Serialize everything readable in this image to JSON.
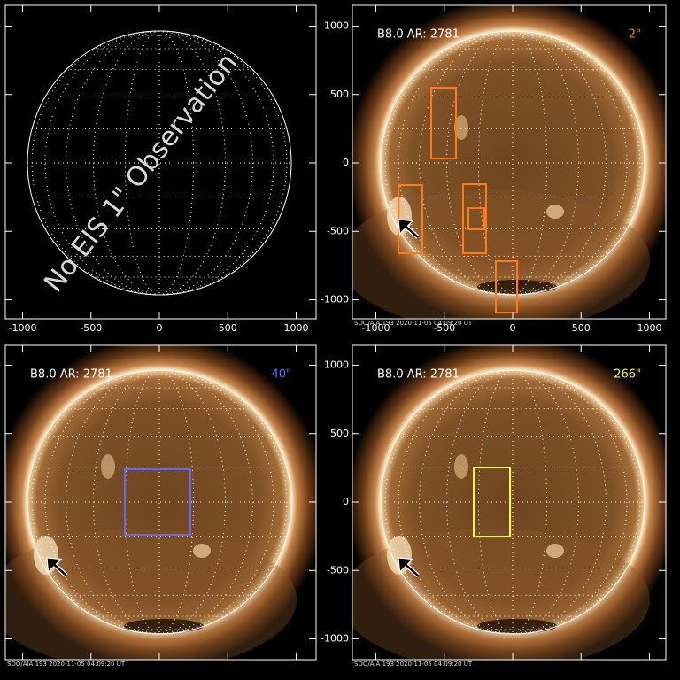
{
  "axis_ticks": [
    -1000,
    -500,
    0,
    500,
    1000
  ],
  "panels": [
    {
      "overlay_text": "No EIS 1\" Observation"
    },
    {
      "header": "B8.0 AR: 2781",
      "fov": "2\"",
      "footer": "SDO/AIA 193  2020-11-05 04:09:20 UT"
    },
    {
      "header": "B8.0 AR: 2781",
      "fov": "40\"",
      "footer": "SDO/AIA 193  2020-11-05 04:09:20 UT"
    },
    {
      "header": "B8.0 AR: 2781",
      "fov": "266\"",
      "footer": "SDO/AIA 193  2020-11-05 04:09:20 UT"
    }
  ]
}
